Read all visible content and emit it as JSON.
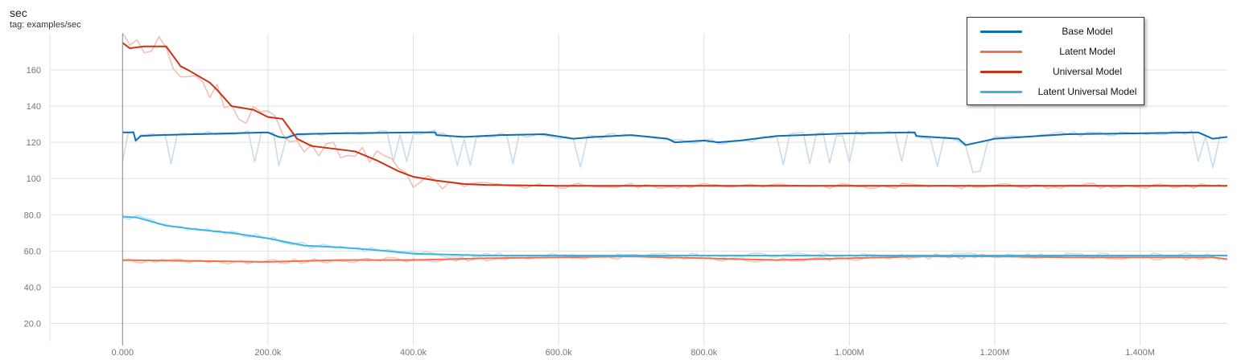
{
  "header": {
    "title": "sec",
    "subtitle": "tag: examples/sec"
  },
  "chart_data": {
    "type": "line",
    "title": "sec",
    "subtitle": "tag: examples/sec",
    "xlabel": "",
    "ylabel": "",
    "xlim": [
      -100000,
      1520000
    ],
    "ylim": [
      10,
      180
    ],
    "x_ticks": [
      0,
      200000,
      400000,
      600000,
      800000,
      1000000,
      1200000,
      1400000
    ],
    "x_tick_labels": [
      "0.000",
      "200.0k",
      "400.0k",
      "600.0k",
      "800.0k",
      "1.000M",
      "1.200M",
      "1.400M"
    ],
    "y_ticks": [
      20,
      40,
      60,
      80,
      100,
      120,
      140,
      160
    ],
    "y_tick_labels": [
      "20.0",
      "40.0",
      "60.0",
      "80.0",
      "100",
      "120",
      "140",
      "160"
    ],
    "grid": true,
    "legend_position": "top-right",
    "series": [
      {
        "name": "Base Model",
        "color": "#0f6fad",
        "raw_color": "#c9dceb",
        "x": [
          0,
          15000,
          18000,
          25000,
          50000,
          100000,
          200000,
          215000,
          225000,
          240000,
          300000,
          400000,
          430000,
          432000,
          470000,
          520000,
          580000,
          620000,
          650000,
          700000,
          750000,
          760000,
          800000,
          820000,
          850000,
          900000,
          1000000,
          1090000,
          1092000,
          1150000,
          1160000,
          1200000,
          1300000,
          1400000,
          1480000,
          1500000,
          1520000
        ],
        "values": [
          125.5,
          125.5,
          121,
          123.5,
          124,
          124.5,
          125.5,
          123,
          122.5,
          124.5,
          125,
          125.5,
          125.5,
          124,
          123,
          124,
          124.5,
          122,
          123,
          124,
          122,
          120,
          121,
          120,
          121,
          123.5,
          125,
          125.5,
          123.5,
          122,
          118.5,
          122,
          124.5,
          125,
          125.5,
          122,
          123
        ]
      },
      {
        "name": "Latent Model",
        "color": "#f4704a",
        "raw_color": "#f6c9bb",
        "x": [
          0,
          100000,
          200000,
          300000,
          400000,
          450000,
          500000,
          600000,
          700000,
          800000,
          900000,
          1000000,
          1100000,
          1200000,
          1300000,
          1400000,
          1500000,
          1520000
        ],
        "values": [
          55,
          54.5,
          54,
          55,
          55,
          55.5,
          56,
          56.5,
          57,
          56,
          55,
          56,
          57,
          57,
          56.5,
          56.5,
          56.5,
          55.5
        ]
      },
      {
        "name": "Universal Model",
        "color": "#c93315",
        "raw_color": "#f2c0b4",
        "x": [
          0,
          10000,
          30000,
          60000,
          80000,
          90000,
          120000,
          130000,
          150000,
          180000,
          200000,
          220000,
          240000,
          260000,
          300000,
          320000,
          350000,
          380000,
          400000,
          430000,
          450000,
          470000,
          500000,
          600000,
          800000,
          900000,
          1000000,
          1100000,
          1200000,
          1400000,
          1520000
        ],
        "values": [
          175,
          172,
          173,
          173,
          162,
          160,
          153,
          149,
          140,
          138,
          134,
          133,
          122,
          118,
          116,
          115,
          110,
          104,
          101,
          99,
          98,
          97,
          96.5,
          96,
          96,
          96,
          96,
          96,
          96,
          96,
          96
        ]
      },
      {
        "name": "Latent Universal Model",
        "color": "#3ab4e6",
        "raw_color": "#bfe3f3",
        "x": [
          0,
          20000,
          60000,
          100000,
          150000,
          200000,
          250000,
          300000,
          350000,
          400000,
          450000,
          500000,
          600000,
          800000,
          1000000,
          1200000,
          1400000,
          1520000
        ],
        "values": [
          79,
          78.5,
          74,
          72,
          70,
          67,
          63,
          62,
          60.5,
          58.5,
          58,
          57.5,
          57.5,
          57.5,
          57.5,
          57.5,
          57.5,
          57.5
        ]
      }
    ]
  }
}
